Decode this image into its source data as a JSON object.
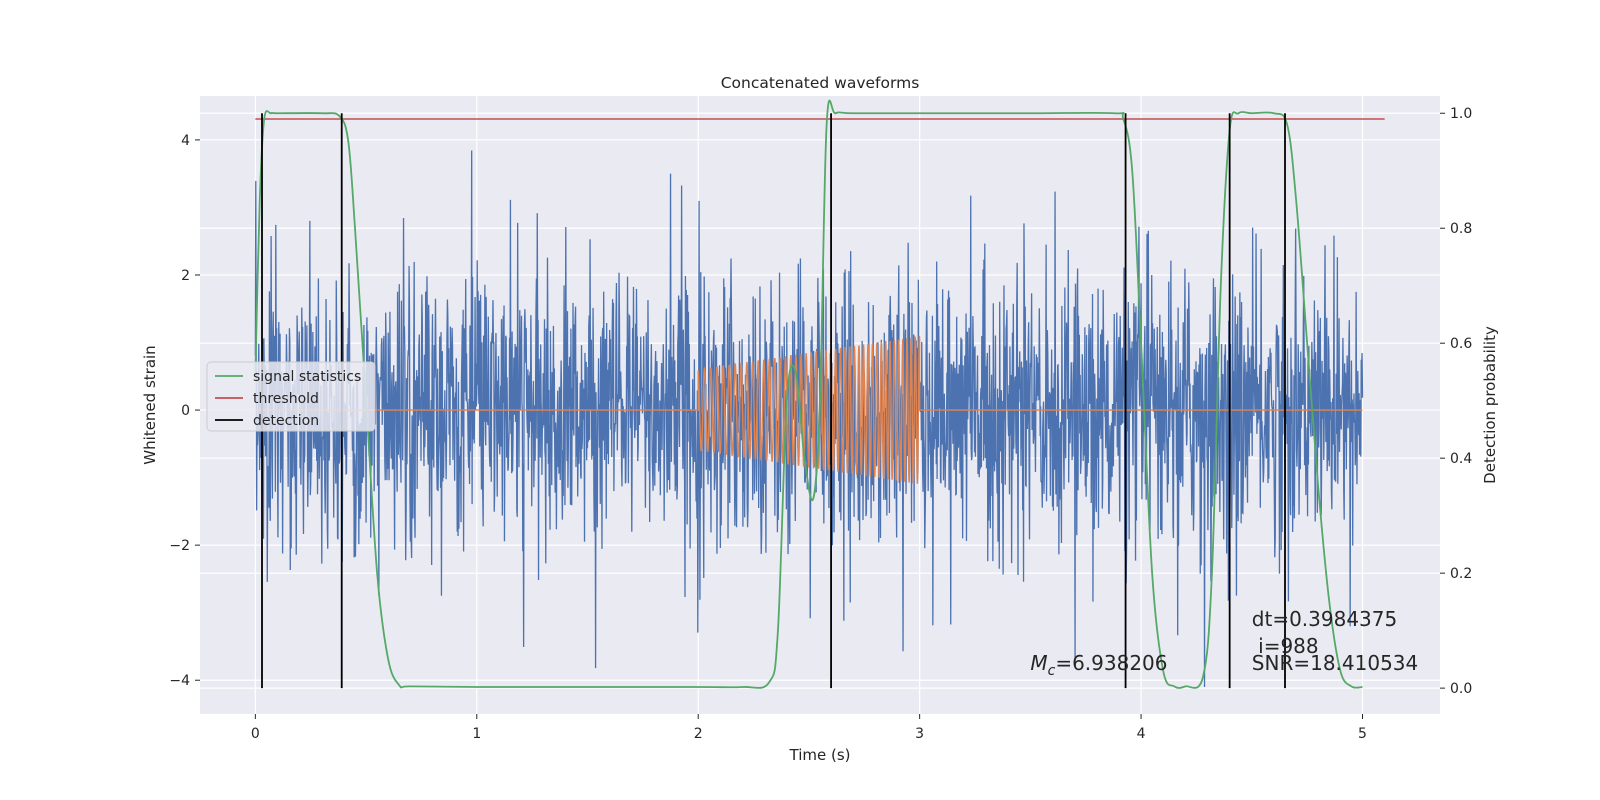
{
  "chart_data": {
    "type": "line",
    "title": "Concatenated waveforms",
    "xlabel": "Time (s)",
    "ylabel": "Whitened strain",
    "ylabel_right": "Detection probability",
    "xlim": [
      -0.25,
      5.35
    ],
    "ylim": [
      -4.5,
      4.65
    ],
    "ylim_right": [
      -0.045,
      1.03
    ],
    "x_ticks": [
      0,
      1,
      2,
      3,
      4,
      5
    ],
    "x_tick_labels": [
      "0",
      "1",
      "2",
      "3",
      "4",
      "5"
    ],
    "y_ticks": [
      -4,
      -2,
      0,
      2,
      4
    ],
    "y_tick_labels": [
      "−4",
      "−2",
      "0",
      "2",
      "4"
    ],
    "y_right_ticks": [
      0.0,
      0.2,
      0.4,
      0.6,
      0.8,
      1.0
    ],
    "y_right_tick_labels": [
      "0.0",
      "0.2",
      "0.4",
      "0.6",
      "0.8",
      "1.0"
    ],
    "grid": true,
    "legend_position": "center-left",
    "colors": {
      "strain": "#4c72b0",
      "template": "#dd8452",
      "signal_statistics": "#55a868",
      "threshold": "#c44e52",
      "detection": "#000000",
      "plot_background": "#eaeaf2",
      "grid": "#ffffff"
    },
    "series": [
      {
        "key": "strain",
        "axis": "left",
        "x_range": [
          0,
          5
        ],
        "typical_amplitude": 1.0,
        "peak_max": 4.2,
        "peak_min": -4.1
      },
      {
        "key": "template",
        "axis": "left",
        "x_range": [
          0,
          5
        ],
        "chirp_start": 2.0,
        "chirp_end": 3.0,
        "amplitude_start": 0.6,
        "amplitude_end": 1.1,
        "value_outside": 0
      },
      {
        "key": "signal_statistics",
        "name": "signal statistics",
        "axis": "right",
        "x": [
          0.0,
          0.02,
          0.04,
          0.07,
          0.1,
          0.3,
          0.38,
          0.42,
          0.45,
          0.5,
          0.55,
          0.6,
          0.65,
          0.7,
          1.0,
          1.5,
          2.0,
          2.2,
          2.32,
          2.36,
          2.4,
          2.44,
          2.48,
          2.52,
          2.55,
          2.58,
          2.62,
          2.7,
          3.0,
          3.5,
          3.88,
          3.92,
          3.96,
          4.0,
          4.05,
          4.1,
          4.15,
          4.2,
          4.28,
          4.32,
          4.36,
          4.4,
          4.44,
          4.5,
          4.6,
          4.66,
          4.7,
          4.75,
          4.8,
          4.85,
          4.9,
          4.95,
          5.0
        ],
        "y": [
          0.55,
          0.85,
          0.99,
          1.0,
          1.0,
          1.0,
          0.995,
          0.95,
          0.8,
          0.5,
          0.2,
          0.05,
          0.005,
          0.003,
          0.002,
          0.002,
          0.002,
          0.002,
          0.01,
          0.1,
          0.5,
          0.55,
          0.4,
          0.33,
          0.5,
          0.98,
          1.0,
          1.0,
          1.0,
          1.0,
          1.0,
          0.99,
          0.9,
          0.6,
          0.2,
          0.03,
          0.003,
          0.003,
          0.02,
          0.2,
          0.7,
          0.97,
          1.0,
          1.0,
          1.0,
          0.98,
          0.85,
          0.6,
          0.35,
          0.15,
          0.03,
          0.003,
          0.002
        ]
      },
      {
        "key": "threshold",
        "name": "threshold",
        "axis": "right",
        "x": [
          0.0,
          5.1
        ],
        "y": [
          0.99,
          0.99
        ]
      },
      {
        "key": "detection",
        "name": "detection",
        "axis": "right",
        "x": [
          0.03,
          0.39,
          2.6,
          3.93,
          4.4,
          4.65
        ],
        "y_range": [
          0.0,
          1.0
        ]
      }
    ],
    "annotations": [
      {
        "name": "mc",
        "text": "=6.938206",
        "prefix": "M",
        "subscript": "c",
        "x": 3.5,
        "y": -3.85
      },
      {
        "name": "dt",
        "text": "dt=0.3984375",
        "x": 4.5,
        "y": -3.2
      },
      {
        "name": "index",
        "text": " i=988",
        "x": 4.5,
        "y": -3.6
      },
      {
        "name": "snr",
        "text": "SNR=18.410534",
        "x": 4.5,
        "y": -3.85
      }
    ]
  }
}
